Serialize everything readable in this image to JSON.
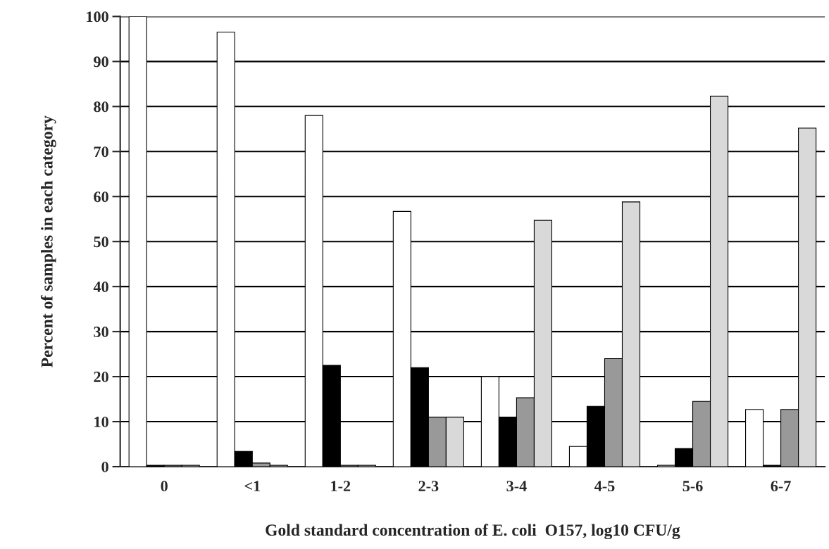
{
  "chart_data": {
    "type": "bar",
    "xlabel": "Gold standard concentration of E. coli  O157, log10 CFU/g",
    "ylabel": "Percent of samples in each category",
    "categories": [
      "0",
      "<1",
      "1-2",
      "2-3",
      "3-4",
      "4-5",
      "5-6",
      "6-7"
    ],
    "series": [
      {
        "color": "#ffffff",
        "values": [
          100,
          96.5,
          78,
          56.7,
          20,
          4.5,
          0.3,
          12.7
        ]
      },
      {
        "color": "#000000",
        "values": [
          0.3,
          3.4,
          22.5,
          22,
          11,
          13.4,
          4,
          0.3
        ]
      },
      {
        "color": "#999999",
        "values": [
          0.3,
          0.8,
          0.3,
          11,
          15.3,
          24,
          14.5,
          12.7
        ]
      },
      {
        "color": "#d9d9d9",
        "values": [
          0.3,
          0.3,
          0.3,
          11,
          54.7,
          58.8,
          82.3,
          75.2
        ]
      }
    ],
    "ylim": [
      0,
      100
    ],
    "yticks": [
      0,
      10,
      20,
      30,
      40,
      50,
      60,
      70,
      80,
      90,
      100
    ],
    "grid": "y",
    "legend": false
  }
}
